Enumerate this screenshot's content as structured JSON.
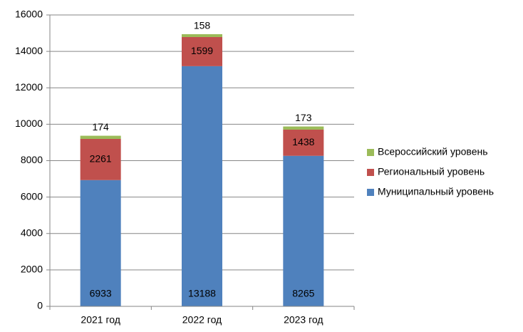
{
  "chart_data": {
    "type": "stacked_bar",
    "categories": [
      "2021 год",
      "2022 год",
      "2023 год"
    ],
    "series": [
      {
        "name": "Муниципальный уровень",
        "color": "#4f81bd",
        "values": [
          6933,
          13188,
          8265
        ]
      },
      {
        "name": "Региональный уровень",
        "color": "#c0504d",
        "values": [
          2261,
          1599,
          1438
        ]
      },
      {
        "name": "Всероссийский уровень",
        "color": "#9bbb59",
        "values": [
          174,
          158,
          173
        ]
      }
    ],
    "ylim": [
      0,
      16000
    ],
    "yticks": [
      0,
      2000,
      4000,
      6000,
      8000,
      10000,
      12000,
      14000,
      16000
    ],
    "grid": true,
    "legend": "right"
  }
}
